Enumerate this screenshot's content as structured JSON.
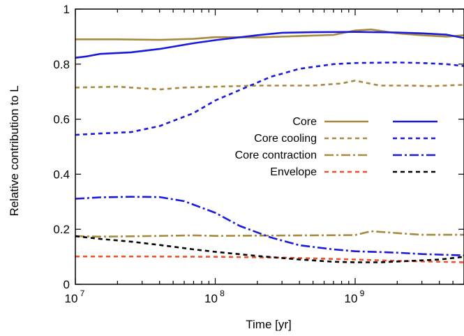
{
  "chart_data": {
    "type": "line",
    "xlabel": "Time [yr]",
    "ylabel": "Relative contribution to L",
    "xscale": "log",
    "xlim": [
      10000000,
      6000000000
    ],
    "ylim": [
      0,
      1
    ],
    "x_ticks": [
      {
        "base": "10",
        "exp": "7",
        "value": 10000000
      },
      {
        "base": "10",
        "exp": "8",
        "value": 100000000
      },
      {
        "base": "10",
        "exp": "9",
        "value": 1000000000
      }
    ],
    "y_ticks": [
      "0",
      "0.2",
      "0.4",
      "0.6",
      "0.8",
      "1"
    ],
    "grid": false,
    "legend_position": "center-right",
    "colors": {
      "gold": "#a8893e",
      "blue": "#1a1adc",
      "red": "#f0502a",
      "black": "#000000"
    },
    "legend_rows": [
      {
        "label": "Core",
        "style": "solid",
        "left_color": "#a8893e",
        "right_color": "#1a1adc"
      },
      {
        "label": "Core cooling",
        "style": "dash",
        "left_color": "#a8893e",
        "right_color": "#1a1adc"
      },
      {
        "label": "Core contraction",
        "style": "dashdot",
        "left_color": "#a8893e",
        "right_color": "#1a1adc"
      },
      {
        "label": "Envelope",
        "style": "dash",
        "left_color": "#f0502a",
        "right_color": "#000000"
      }
    ],
    "series": [
      {
        "color": "#a8893e",
        "style": "solid",
        "x": [
          10000000,
          20000000,
          40000000,
          70000000,
          100000000,
          200000000,
          400000000,
          700000000,
          1000000000,
          1300000000,
          2000000000,
          3000000000,
          4500000000,
          6000000000
        ],
        "y": [
          0.89,
          0.89,
          0.888,
          0.892,
          0.898,
          0.897,
          0.902,
          0.906,
          0.922,
          0.926,
          0.912,
          0.905,
          0.9,
          0.905
        ]
      },
      {
        "color": "#1a1adc",
        "style": "solid",
        "x": [
          10000000,
          12000000,
          15000000,
          25000000,
          40000000,
          70000000,
          100000000,
          200000000,
          300000000,
          500000000,
          1000000000,
          2000000000,
          3000000000,
          4500000000,
          6000000000
        ],
        "y": [
          0.823,
          0.828,
          0.837,
          0.843,
          0.855,
          0.876,
          0.887,
          0.905,
          0.914,
          0.916,
          0.917,
          0.915,
          0.912,
          0.907,
          0.895
        ]
      },
      {
        "color": "#a8893e",
        "style": "dash",
        "x": [
          10000000,
          20000000,
          40000000,
          60000000,
          100000000,
          200000000,
          500000000,
          800000000,
          1000000000,
          1500000000,
          2500000000,
          3500000000,
          6000000000
        ],
        "y": [
          0.715,
          0.718,
          0.708,
          0.715,
          0.718,
          0.722,
          0.722,
          0.73,
          0.74,
          0.722,
          0.722,
          0.72,
          0.725
        ]
      },
      {
        "color": "#1a1adc",
        "style": "dash",
        "x": [
          10000000,
          15000000,
          25000000,
          40000000,
          70000000,
          100000000,
          150000000,
          250000000,
          400000000,
          700000000,
          1000000000,
          2000000000,
          3000000000,
          4500000000,
          6000000000
        ],
        "y": [
          0.543,
          0.548,
          0.553,
          0.575,
          0.622,
          0.668,
          0.706,
          0.754,
          0.783,
          0.8,
          0.804,
          0.806,
          0.804,
          0.8,
          0.793
        ]
      },
      {
        "color": "#a8893e",
        "style": "dashdot",
        "x": [
          10000000,
          15000000,
          30000000,
          70000000,
          100000000,
          200000000,
          500000000,
          1000000000,
          1300000000,
          2000000000,
          3000000000,
          6000000000
        ],
        "y": [
          0.175,
          0.173,
          0.175,
          0.178,
          0.176,
          0.177,
          0.178,
          0.179,
          0.193,
          0.186,
          0.18,
          0.18
        ]
      },
      {
        "color": "#1a1adc",
        "style": "dashdot",
        "x": [
          10000000,
          15000000,
          25000000,
          40000000,
          60000000,
          100000000,
          150000000,
          250000000,
          400000000,
          700000000,
          1000000000,
          2000000000,
          3000000000,
          4500000000,
          6000000000
        ],
        "y": [
          0.311,
          0.316,
          0.318,
          0.317,
          0.302,
          0.26,
          0.212,
          0.17,
          0.142,
          0.127,
          0.12,
          0.115,
          0.11,
          0.107,
          0.105
        ]
      },
      {
        "color": "#f0502a",
        "style": "dash",
        "x": [
          10000000,
          30000000,
          100000000,
          300000000,
          1000000000,
          2000000000,
          4000000000,
          6000000000
        ],
        "y": [
          0.101,
          0.101,
          0.1,
          0.097,
          0.09,
          0.085,
          0.082,
          0.08
        ]
      },
      {
        "color": "#000000",
        "style": "dash",
        "x": [
          10000000,
          15000000,
          25000000,
          40000000,
          70000000,
          100000000,
          200000000,
          400000000,
          700000000,
          1000000000,
          1500000000,
          2500000000,
          4000000000,
          6000000000
        ],
        "y": [
          0.175,
          0.165,
          0.155,
          0.143,
          0.127,
          0.118,
          0.103,
          0.09,
          0.082,
          0.08,
          0.08,
          0.085,
          0.09,
          0.1
        ]
      }
    ]
  }
}
